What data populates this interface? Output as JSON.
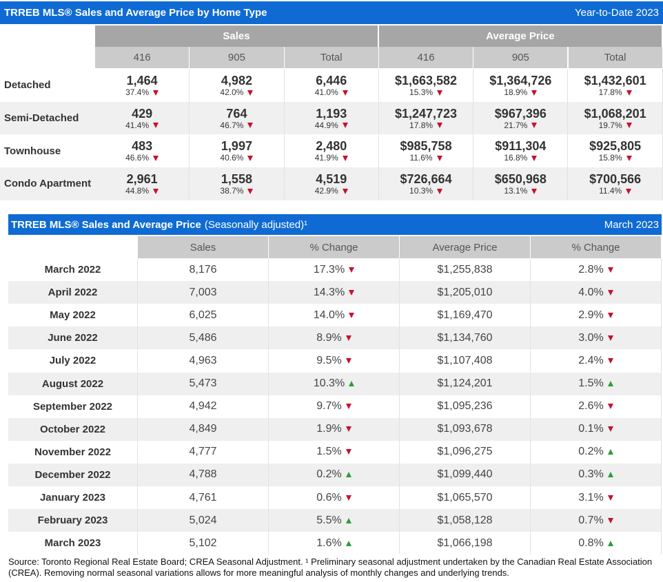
{
  "table1": {
    "title": "TRREB MLS® Sales and Average Price by Home Type",
    "period": "Year-to-Date 2023",
    "groups": [
      "Sales",
      "Average Price"
    ],
    "columns": [
      "416",
      "905",
      "Total",
      "416",
      "905",
      "Total"
    ],
    "rows": [
      {
        "label": "Detached",
        "cells": [
          {
            "value": "1,464",
            "change": "37.4%",
            "direction": "down"
          },
          {
            "value": "4,982",
            "change": "42.0%",
            "direction": "down"
          },
          {
            "value": "6,446",
            "change": "41.0%",
            "direction": "down"
          },
          {
            "value": "$1,663,582",
            "change": "15.3%",
            "direction": "down"
          },
          {
            "value": "$1,364,726",
            "change": "18.9%",
            "direction": "down"
          },
          {
            "value": "$1,432,601",
            "change": "17.8%",
            "direction": "down"
          }
        ]
      },
      {
        "label": "Semi-Detached",
        "cells": [
          {
            "value": "429",
            "change": "41.4%",
            "direction": "down"
          },
          {
            "value": "764",
            "change": "46.7%",
            "direction": "down"
          },
          {
            "value": "1,193",
            "change": "44.9%",
            "direction": "down"
          },
          {
            "value": "$1,247,723",
            "change": "17.8%",
            "direction": "down"
          },
          {
            "value": "$967,396",
            "change": "21.7%",
            "direction": "down"
          },
          {
            "value": "$1,068,201",
            "change": "19.7%",
            "direction": "down"
          }
        ]
      },
      {
        "label": "Townhouse",
        "cells": [
          {
            "value": "483",
            "change": "46.6%",
            "direction": "down"
          },
          {
            "value": "1,997",
            "change": "40.6%",
            "direction": "down"
          },
          {
            "value": "2,480",
            "change": "41.9%",
            "direction": "down"
          },
          {
            "value": "$985,758",
            "change": "11.6%",
            "direction": "down"
          },
          {
            "value": "$911,304",
            "change": "16.8%",
            "direction": "down"
          },
          {
            "value": "$925,805",
            "change": "15.8%",
            "direction": "down"
          }
        ]
      },
      {
        "label": "Condo Apartment",
        "cells": [
          {
            "value": "2,961",
            "change": "44.8%",
            "direction": "down"
          },
          {
            "value": "1,558",
            "change": "38.7%",
            "direction": "down"
          },
          {
            "value": "4,519",
            "change": "42.9%",
            "direction": "down"
          },
          {
            "value": "$726,664",
            "change": "10.3%",
            "direction": "down"
          },
          {
            "value": "$650,968",
            "change": "13.1%",
            "direction": "down"
          },
          {
            "value": "$700,566",
            "change": "11.4%",
            "direction": "down"
          }
        ]
      }
    ]
  },
  "table2": {
    "title": "TRREB MLS® Sales and Average Price",
    "subtitle": "(Seasonally adjusted)¹",
    "period": "March 2023",
    "columns": [
      "Sales",
      "% Change",
      "Average Price",
      "% Change"
    ],
    "rows": [
      {
        "label": "March 2022",
        "sales": "8,176",
        "sales_change": {
          "value": "17.3%",
          "direction": "down"
        },
        "price": "$1,255,838",
        "price_change": {
          "value": "2.8%",
          "direction": "down"
        }
      },
      {
        "label": "April 2022",
        "sales": "7,003",
        "sales_change": {
          "value": "14.3%",
          "direction": "down"
        },
        "price": "$1,205,010",
        "price_change": {
          "value": "4.0%",
          "direction": "down"
        }
      },
      {
        "label": "May 2022",
        "sales": "6,025",
        "sales_change": {
          "value": "14.0%",
          "direction": "down"
        },
        "price": "$1,169,470",
        "price_change": {
          "value": "2.9%",
          "direction": "down"
        }
      },
      {
        "label": "June 2022",
        "sales": "5,486",
        "sales_change": {
          "value": "8.9%",
          "direction": "down"
        },
        "price": "$1,134,760",
        "price_change": {
          "value": "3.0%",
          "direction": "down"
        }
      },
      {
        "label": "July 2022",
        "sales": "4,963",
        "sales_change": {
          "value": "9.5%",
          "direction": "down"
        },
        "price": "$1,107,408",
        "price_change": {
          "value": "2.4%",
          "direction": "down"
        }
      },
      {
        "label": "August 2022",
        "sales": "5,473",
        "sales_change": {
          "value": "10.3%",
          "direction": "up"
        },
        "price": "$1,124,201",
        "price_change": {
          "value": "1.5%",
          "direction": "up"
        }
      },
      {
        "label": "September 2022",
        "sales": "4,942",
        "sales_change": {
          "value": "9.7%",
          "direction": "down"
        },
        "price": "$1,095,236",
        "price_change": {
          "value": "2.6%",
          "direction": "down"
        }
      },
      {
        "label": "October 2022",
        "sales": "4,849",
        "sales_change": {
          "value": "1.9%",
          "direction": "down"
        },
        "price": "$1,093,678",
        "price_change": {
          "value": "0.1%",
          "direction": "down"
        }
      },
      {
        "label": "November 2022",
        "sales": "4,777",
        "sales_change": {
          "value": "1.5%",
          "direction": "down"
        },
        "price": "$1,096,275",
        "price_change": {
          "value": "0.2%",
          "direction": "up"
        }
      },
      {
        "label": "December 2022",
        "sales": "4,788",
        "sales_change": {
          "value": "0.2%",
          "direction": "up"
        },
        "price": "$1,099,440",
        "price_change": {
          "value": "0.3%",
          "direction": "up"
        }
      },
      {
        "label": "January 2023",
        "sales": "4,761",
        "sales_change": {
          "value": "0.6%",
          "direction": "down"
        },
        "price": "$1,065,570",
        "price_change": {
          "value": "3.1%",
          "direction": "down"
        }
      },
      {
        "label": "February 2023",
        "sales": "5,024",
        "sales_change": {
          "value": "5.5%",
          "direction": "up"
        },
        "price": "$1,058,128",
        "price_change": {
          "value": "0.7%",
          "direction": "down"
        }
      },
      {
        "label": "March 2023",
        "sales": "5,102",
        "sales_change": {
          "value": "1.6%",
          "direction": "up"
        },
        "price": "$1,066,198",
        "price_change": {
          "value": "0.8%",
          "direction": "up"
        }
      }
    ]
  },
  "footnote": "Source: Toronto Regional Real Estate Board; CREA Seasonal Adjustment. ¹ Preliminary seasonal adjustment undertaken by the Canadian Real Estate Association (CREA).  Removing normal seasonal variations allows for more meaningful analysis of monthly changes and underlying trends."
}
